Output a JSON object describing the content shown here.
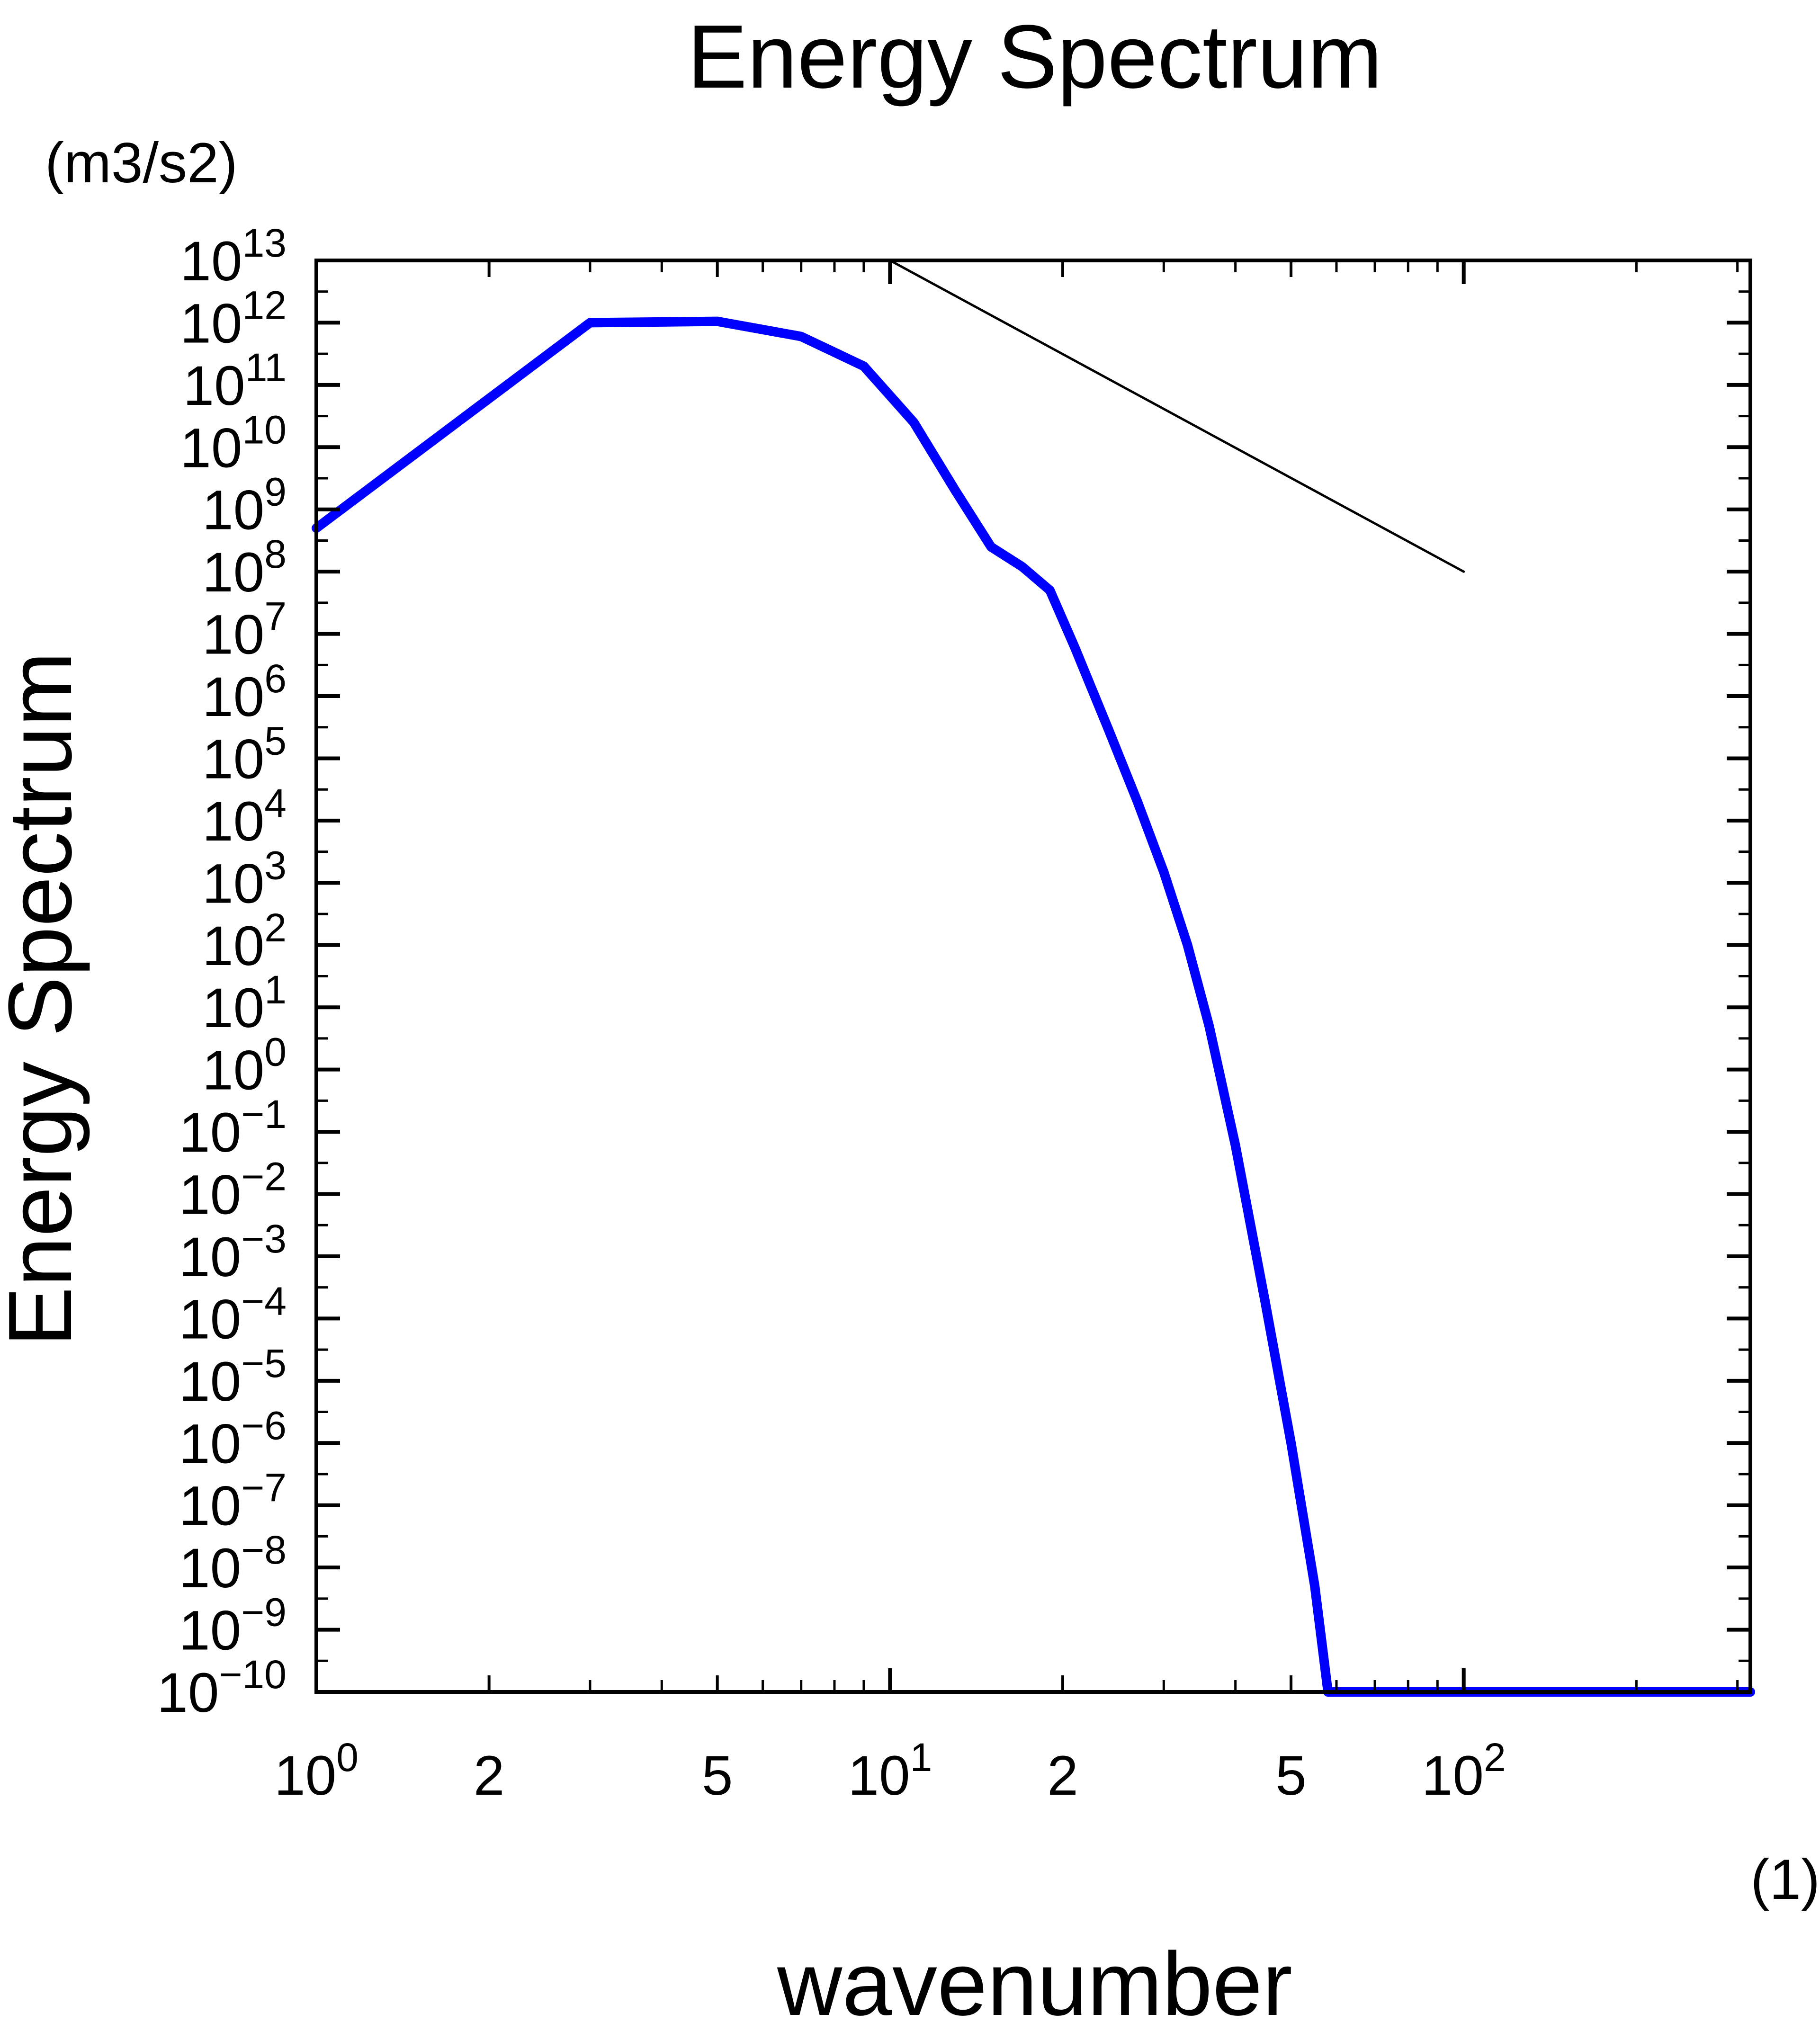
{
  "chart_data": {
    "type": "line",
    "title": "Energy Spectrum",
    "ylabel": "Energy Spectrum",
    "yunit": "(m3/s2)",
    "xlabel": "wavenumber",
    "xunit": "(1)",
    "xscale": "log",
    "yscale": "log",
    "xlim": [
      1,
      316
    ],
    "ylim": [
      1e-10,
      10000000000000.0
    ],
    "grid": false,
    "x_ticks": [
      {
        "value": 1,
        "base": "10",
        "exp": "0"
      },
      {
        "value": 2,
        "base": "2",
        "exp": ""
      },
      {
        "value": 5,
        "base": "5",
        "exp": ""
      },
      {
        "value": 10,
        "base": "10",
        "exp": "1"
      },
      {
        "value": 20,
        "base": "2",
        "exp": ""
      },
      {
        "value": 50,
        "base": "5",
        "exp": ""
      },
      {
        "value": 100,
        "base": "10",
        "exp": "2"
      }
    ],
    "y_ticks": [
      {
        "exp": 13,
        "base": "10",
        "label": "13"
      },
      {
        "exp": 12,
        "base": "10",
        "label": "12"
      },
      {
        "exp": 11,
        "base": "10",
        "label": "11"
      },
      {
        "exp": 10,
        "base": "10",
        "label": "10"
      },
      {
        "exp": 9,
        "base": "10",
        "label": "9"
      },
      {
        "exp": 8,
        "base": "10",
        "label": "8"
      },
      {
        "exp": 7,
        "base": "10",
        "label": "7"
      },
      {
        "exp": 6,
        "base": "10",
        "label": "6"
      },
      {
        "exp": 5,
        "base": "10",
        "label": "5"
      },
      {
        "exp": 4,
        "base": "10",
        "label": "4"
      },
      {
        "exp": 3,
        "base": "10",
        "label": "3"
      },
      {
        "exp": 2,
        "base": "10",
        "label": "2"
      },
      {
        "exp": 1,
        "base": "10",
        "label": "1"
      },
      {
        "exp": 0,
        "base": "10",
        "label": "0"
      },
      {
        "exp": -1,
        "base": "10",
        "label": "−1"
      },
      {
        "exp": -2,
        "base": "10",
        "label": "−2"
      },
      {
        "exp": -3,
        "base": "10",
        "label": "−3"
      },
      {
        "exp": -4,
        "base": "10",
        "label": "−4"
      },
      {
        "exp": -5,
        "base": "10",
        "label": "−5"
      },
      {
        "exp": -6,
        "base": "10",
        "label": "−6"
      },
      {
        "exp": -7,
        "base": "10",
        "label": "−7"
      },
      {
        "exp": -8,
        "base": "10",
        "label": "−8"
      },
      {
        "exp": -9,
        "base": "10",
        "label": "−9"
      },
      {
        "exp": -10,
        "base": "10",
        "label": "−10"
      }
    ],
    "series": [
      {
        "color": "#0000ff",
        "points": [
          [
            1,
            500000000.0
          ],
          [
            3,
            1000000000000.0
          ],
          [
            5,
            1050000000000.0
          ],
          [
            7,
            600000000000.0
          ],
          [
            9,
            200000000000.0
          ],
          [
            11,
            25000000000.0
          ],
          [
            13,
            2000000000.0
          ],
          [
            15,
            250000000.0
          ],
          [
            17,
            120000000.0
          ],
          [
            19,
            50000000.0
          ],
          [
            21,
            6000000.0
          ],
          [
            24,
            300000.0
          ],
          [
            27,
            20000.0
          ],
          [
            30,
            1500.0
          ],
          [
            33,
            100.0
          ],
          [
            36,
            5.0
          ],
          [
            40,
            0.06
          ],
          [
            45,
            0.0002
          ],
          [
            50,
            1e-06
          ],
          [
            55,
            5e-09
          ],
          [
            58,
            1e-10
          ],
          [
            316,
            1e-10
          ]
        ]
      },
      {
        "color": "#000000",
        "points": [
          [
            10,
            10000000000000.0
          ],
          [
            100,
            100000000.0
          ]
        ]
      }
    ]
  }
}
